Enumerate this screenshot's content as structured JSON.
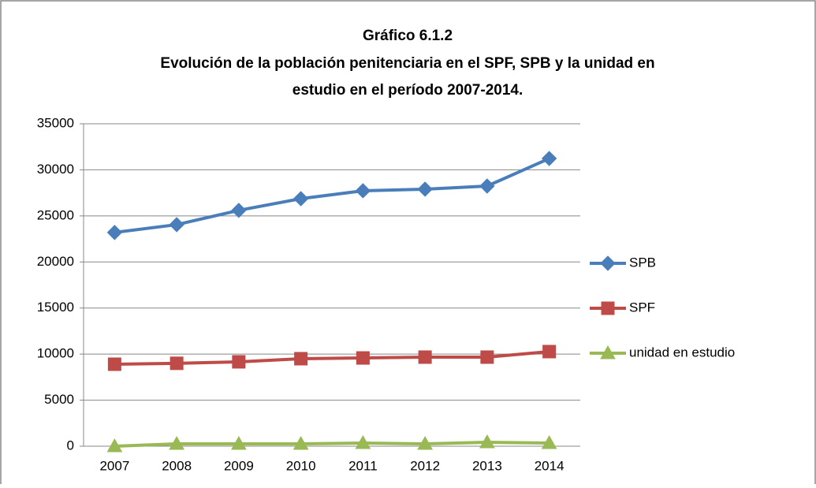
{
  "chart_data": {
    "type": "line",
    "title": "Gráfico 6.1.2",
    "subtitle": [
      "Evolución de la población penitenciaria en el SPF, SPB y la unidad en",
      "estudio en el período  2007-2014."
    ],
    "categories": [
      "2007",
      "2008",
      "2009",
      "2010",
      "2011",
      "2012",
      "2013",
      "2014"
    ],
    "series": [
      {
        "name": "SPB",
        "color": "#4a7ebb",
        "marker": "diamond",
        "values": [
          23200,
          24050,
          25600,
          26870,
          27730,
          27900,
          28240,
          31230
        ]
      },
      {
        "name": "SPF",
        "color": "#be4b48",
        "marker": "square",
        "values": [
          8900,
          9000,
          9160,
          9500,
          9580,
          9670,
          9670,
          10270
        ]
      },
      {
        "name": "unidad en estudio",
        "color": "#98b954",
        "marker": "triangle",
        "values": [
          0,
          260,
          260,
          260,
          340,
          260,
          430,
          340
        ]
      }
    ],
    "ylim": [
      0,
      35000
    ],
    "yticks": [
      0,
      5000,
      10000,
      15000,
      20000,
      25000,
      30000,
      35000
    ],
    "grid": true,
    "legend": "right"
  }
}
